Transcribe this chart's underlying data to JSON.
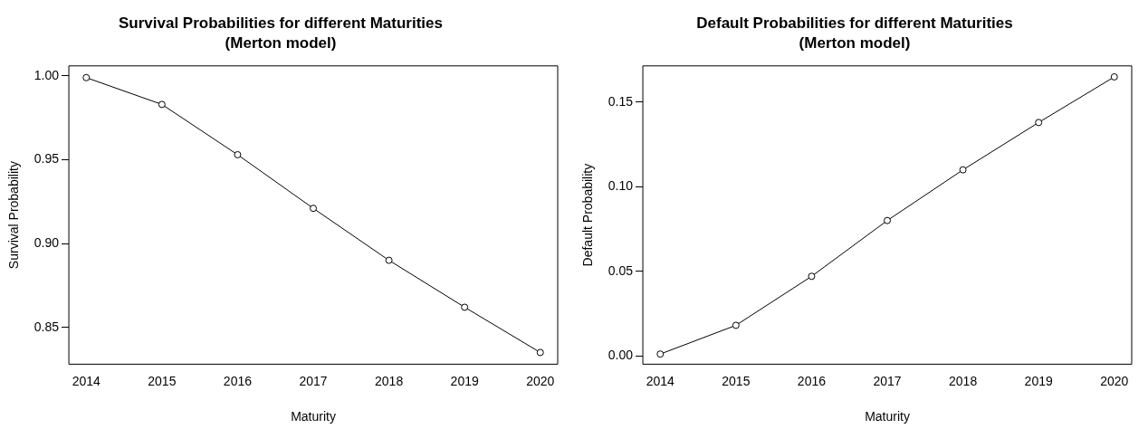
{
  "chart_data": [
    {
      "type": "line",
      "title": "Survival Probabilities for different Maturities",
      "subtitle": "(Merton model)",
      "xlabel": "Maturity",
      "ylabel": "Survival Probability",
      "x": [
        2014,
        2015,
        2016,
        2017,
        2018,
        2019,
        2020
      ],
      "values": [
        0.999,
        0.983,
        0.953,
        0.921,
        0.89,
        0.862,
        0.835
      ],
      "color": "#000000",
      "marker": "circle",
      "line_style": "solid",
      "grid": false,
      "xlim": [
        2013.77,
        2020.23
      ],
      "xticks": [
        2014,
        2015,
        2016,
        2017,
        2018,
        2019,
        2020
      ],
      "ylim": [
        0.828,
        1.006
      ],
      "yticks": [
        {
          "value": 0.85,
          "label": "0.85"
        },
        {
          "value": 0.9,
          "label": "0.90"
        },
        {
          "value": 0.95,
          "label": "0.95"
        },
        {
          "value": 1,
          "label": "1.00"
        }
      ]
    },
    {
      "type": "line",
      "title": "Default Probabilities for different Maturities",
      "subtitle": "(Merton model)",
      "xlabel": "Maturity",
      "ylabel": "Default Probability",
      "x": [
        2014,
        2015,
        2016,
        2017,
        2018,
        2019,
        2020
      ],
      "values": [
        0.001,
        0.018,
        0.047,
        0.08,
        0.11,
        0.138,
        0.165
      ],
      "color": "#000000",
      "marker": "circle",
      "line_style": "solid",
      "grid": false,
      "xlim": [
        2013.77,
        2020.23
      ],
      "xticks": [
        2014,
        2015,
        2016,
        2017,
        2018,
        2019,
        2020
      ],
      "ylim": [
        -0.005,
        0.1715
      ],
      "yticks": [
        {
          "value": 0,
          "label": "0.00"
        },
        {
          "value": 0.05,
          "label": "0.05"
        },
        {
          "value": 0.1,
          "label": "0.10"
        },
        {
          "value": 0.15,
          "label": "0.15"
        }
      ]
    }
  ]
}
